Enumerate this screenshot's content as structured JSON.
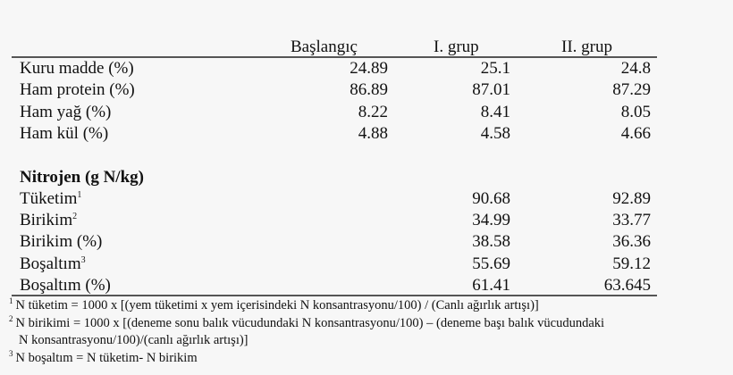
{
  "table": {
    "headers": [
      "",
      "Başlangıç",
      "I. grup",
      "II. grup"
    ],
    "rows": [
      {
        "label": "Kuru madde (%)",
        "sup": "",
        "values": [
          "24.89",
          "25.1",
          "24.8"
        ]
      },
      {
        "label": "Ham protein (%)",
        "sup": "",
        "values": [
          "86.89",
          "87.01",
          "87.29"
        ]
      },
      {
        "label": "Ham yağ (%)",
        "sup": "",
        "values": [
          "8.22",
          "8.41",
          "8.05"
        ]
      },
      {
        "label": "Ham kül (%)",
        "sup": "",
        "values": [
          "4.88",
          "4.58",
          "4.66"
        ]
      },
      {
        "label": "",
        "sup": "",
        "values": [
          "",
          "",
          ""
        ]
      },
      {
        "label": "Nitrojen (g N/kg)",
        "sup": "",
        "bold": true,
        "values": [
          "",
          "",
          ""
        ]
      },
      {
        "label": "Tüketim",
        "sup": "1",
        "values": [
          "",
          "90.68",
          "92.89"
        ]
      },
      {
        "label": "Birikim",
        "sup": "2",
        "values": [
          "",
          "34.99",
          "33.77"
        ]
      },
      {
        "label": "Birikim (%)",
        "sup": "",
        "values": [
          "",
          "38.58",
          "36.36"
        ]
      },
      {
        "label": "Boşaltım",
        "sup": "3",
        "values": [
          "",
          "55.69",
          "59.12"
        ]
      },
      {
        "label": "Boşaltım (%)",
        "sup": "",
        "values": [
          "",
          "61.41",
          "63.645"
        ]
      }
    ]
  },
  "footnotes": [
    {
      "sup": "1",
      "text": "N tüketim = 1000 x [(yem tüketimi x yem içerisindeki N konsantrasyonu/100) / (Canlı ağırlık artışı)]"
    },
    {
      "sup": "2",
      "text": "N birikimi = 1000 x [(deneme sonu balık vücudundaki N konsantrasyonu/100) – (deneme başı balık vücudundaki"
    },
    {
      "sup": "",
      "text": "N konsantrasyonu/100)/(canlı ağırlık artışı)]"
    },
    {
      "sup": "3",
      "text": "N boşaltım = N tüketim- N birikim"
    }
  ]
}
